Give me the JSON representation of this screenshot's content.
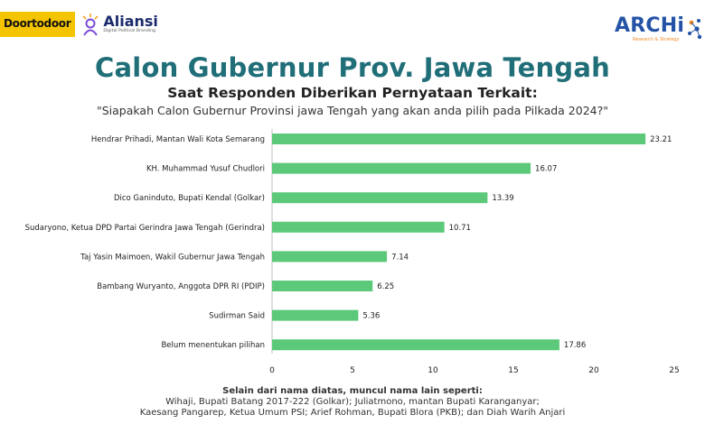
{
  "logos": {
    "doortodoor": "Doortodoor",
    "aliansi": "Aliansi",
    "aliansi_sub": "Digital Political Branding",
    "archi": "ARCHi",
    "archi_sub": "Research & Strategy"
  },
  "header": {
    "title": "Calon Gubernur Prov. Jawa Tengah",
    "subtitle": "Saat Responden Diberikan Pernyataan Terkait:",
    "question": "\"Siapakah Calon Gubernur Provinsi jawa Tengah yang akan anda pilih pada Pilkada 2024?\""
  },
  "chart_data": {
    "type": "bar",
    "orientation": "horizontal",
    "categories": [
      "Hendrar Prihadi, Mantan Wali Kota Semarang",
      "KH. Muhammad Yusuf Chudlori",
      "Dico Ganinduto, Bupati Kendal (Golkar)",
      "Sudaryono, Ketua DPD Partai Gerindra Jawa Tengah (Gerindra)",
      "Taj Yasin Maimoen, Wakil Gubernur Jawa Tengah",
      "Bambang Wuryanto, Anggota DPR RI (PDIP)",
      "Sudirman Said",
      "Belum menentukan pilihan"
    ],
    "values": [
      23.21,
      16.07,
      13.39,
      10.71,
      7.14,
      6.25,
      5.36,
      17.86
    ],
    "value_labels": [
      "23.21",
      "16.07",
      "13.39",
      "10.71",
      "7.14",
      "6.25",
      "5.36",
      "17.86"
    ],
    "xlim": [
      0,
      25
    ],
    "xticks": [
      "0",
      "5",
      "10",
      "15",
      "20",
      "25"
    ],
    "bar_color": "#5cc97a",
    "grid": false
  },
  "footer": {
    "line1": "Selain dari nama diatas, muncul nama lain seperti:",
    "line2": "Wihaji, Bupati Batang 2017-222 (Golkar); Juliatmono, mantan Bupati Karanganyar;",
    "line3": "Kaesang Pangarep, Ketua Umum PSI; Arief Rohman, Bupati Blora (PKB); dan Diah Warih Anjari"
  },
  "colors": {
    "title": "#1f6e78",
    "doortodoor_bg": "#f5c400",
    "aliansi": "#1b2a6b",
    "archi": "#2453a6",
    "archi_accent": "#f28c28"
  }
}
